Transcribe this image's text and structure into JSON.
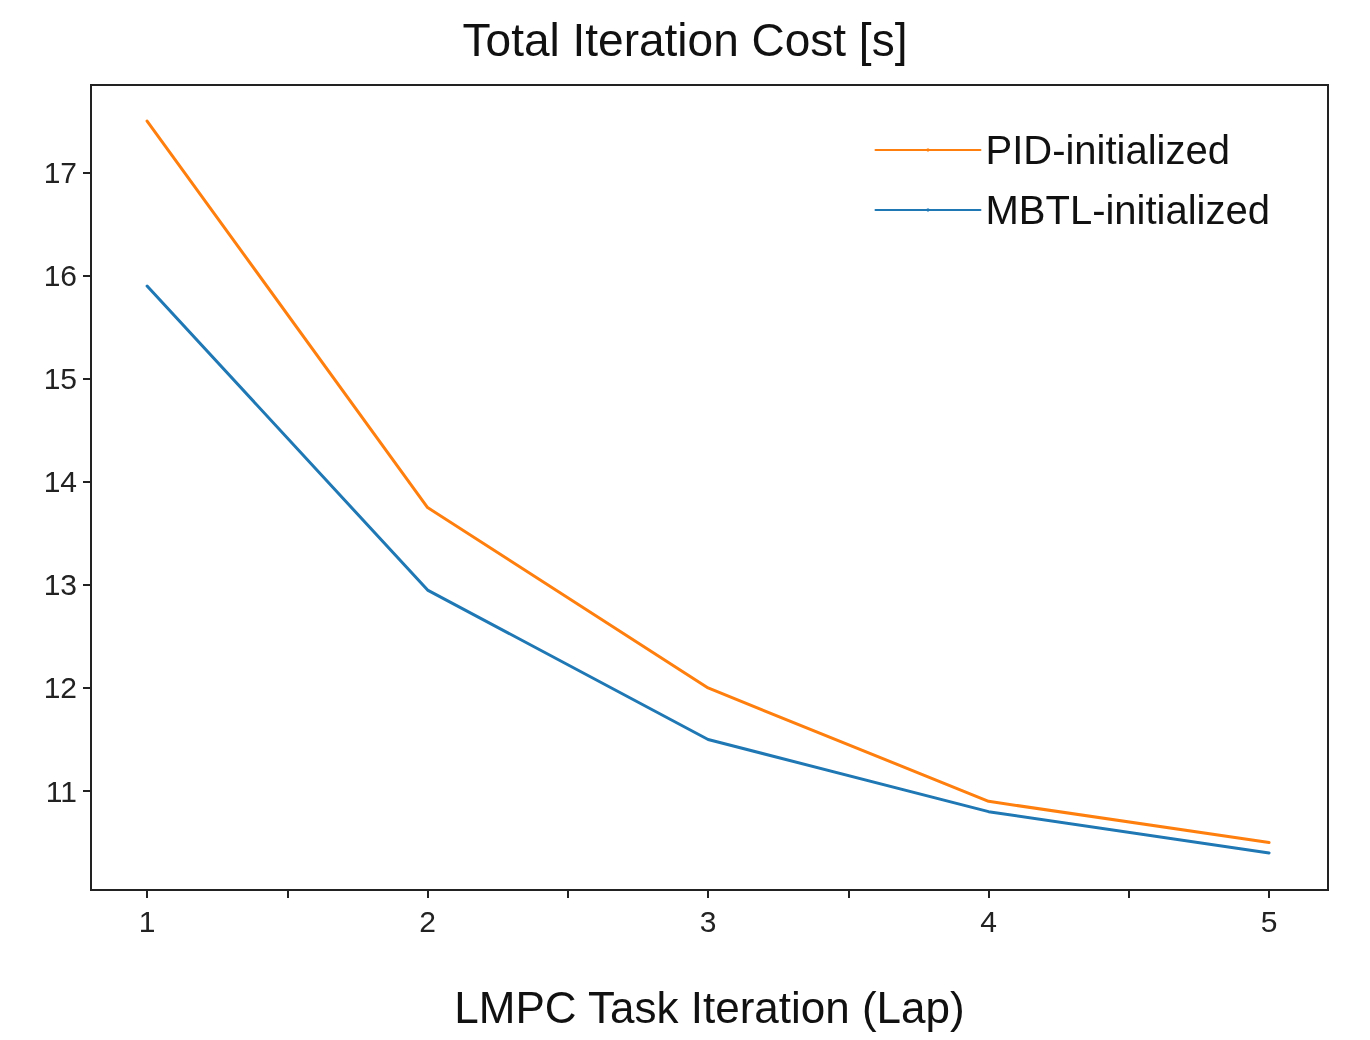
{
  "chart_data": {
    "type": "line",
    "title": "Total Iteration Cost [s]",
    "xlabel": "LMPC Task Iteration (Lap)",
    "x": [
      1,
      2,
      3,
      4,
      5
    ],
    "series": [
      {
        "name": "PID-initialized",
        "color": "#ff7f0e",
        "values": [
          17.5,
          13.75,
          12.0,
          10.9,
          10.5
        ]
      },
      {
        "name": "MBTL-initialized",
        "color": "#1f77b4",
        "values": [
          15.9,
          12.95,
          11.5,
          10.8,
          10.4
        ]
      }
    ],
    "xlim": [
      0.8,
      5.21
    ],
    "xticks": [
      1,
      {
        "value": 1.5,
        "label": null
      },
      2,
      {
        "value": 2.5,
        "label": null
      },
      3,
      {
        "value": 3.5,
        "label": null
      },
      4,
      {
        "value": 4.5,
        "label": null
      },
      5
    ],
    "ylim": [
      10.04,
      17.85
    ],
    "yticks": [
      11,
      12,
      13,
      14,
      15,
      16,
      17
    ],
    "grid": false,
    "legend": "top right",
    "marker": "none",
    "line_style": "solid"
  }
}
